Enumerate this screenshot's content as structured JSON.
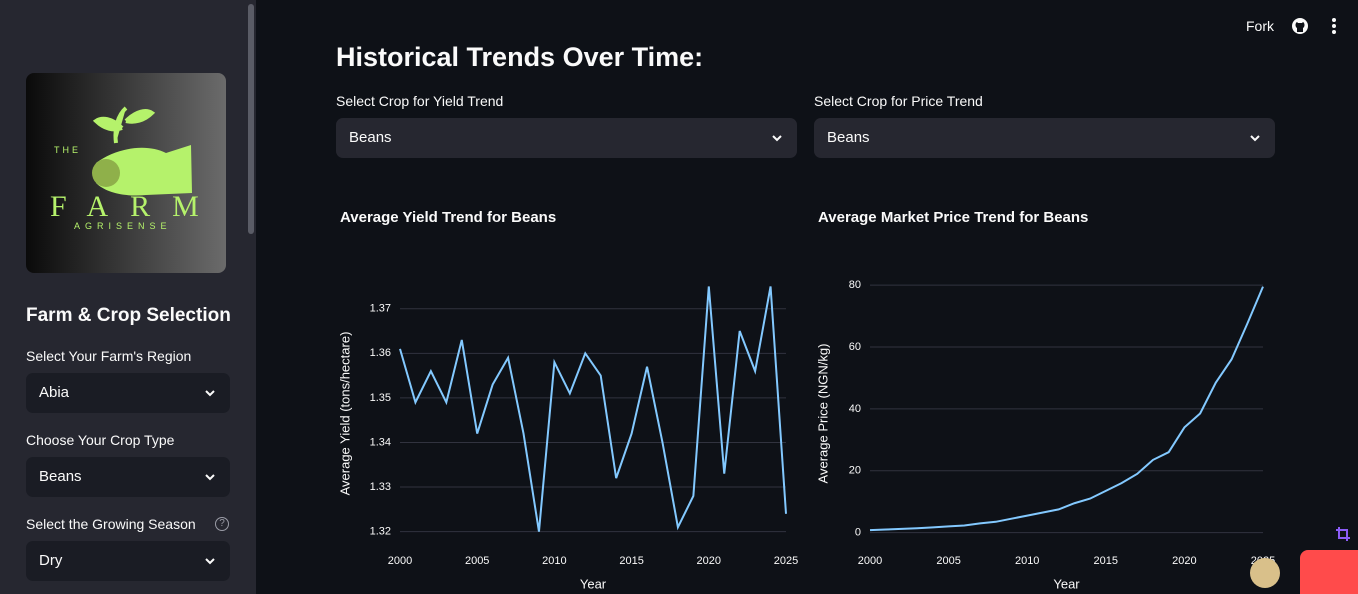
{
  "header": {
    "fork": "Fork"
  },
  "sidebar": {
    "logo": {
      "top": "THE",
      "name": "FARM",
      "tagline": "AGRISENSE"
    },
    "title": "Farm & Crop Selection",
    "region": {
      "label": "Select Your Farm's Region",
      "value": "Abia"
    },
    "crop": {
      "label": "Choose Your Crop Type",
      "value": "Beans"
    },
    "season": {
      "label": "Select the Growing Season",
      "help": "?",
      "value": "Dry"
    }
  },
  "main": {
    "title": "Historical Trends Over Time:",
    "yield_select": {
      "label": "Select Crop for Yield Trend",
      "value": "Beans"
    },
    "price_select": {
      "label": "Select Crop for Price Trend",
      "value": "Beans"
    }
  },
  "chart_data": [
    {
      "type": "line",
      "title": "Average Yield Trend for Beans",
      "x_label": "Year",
      "y_label": "Average Yield (tons/hectare)",
      "x": [
        2000,
        2001,
        2002,
        2003,
        2004,
        2005,
        2006,
        2007,
        2008,
        2009,
        2010,
        2011,
        2012,
        2013,
        2014,
        2015,
        2016,
        2017,
        2018,
        2019,
        2020,
        2021,
        2022,
        2023,
        2024,
        2025
      ],
      "values": [
        1.361,
        1.349,
        1.356,
        1.349,
        1.363,
        1.342,
        1.353,
        1.359,
        1.342,
        1.32,
        1.358,
        1.351,
        1.36,
        1.355,
        1.332,
        1.342,
        1.357,
        1.34,
        1.321,
        1.328,
        1.375,
        1.333,
        1.365,
        1.356,
        1.375,
        1.324
      ],
      "color": "#83c9ff",
      "grid": true,
      "xlim": [
        2000,
        2025
      ],
      "xticks": [
        2000,
        2005,
        2010,
        2015,
        2020,
        2025
      ],
      "ylim": [
        1.317,
        1.376
      ],
      "yticks": [
        1.32,
        1.33,
        1.34,
        1.35,
        1.36,
        1.37
      ]
    },
    {
      "type": "line",
      "title": "Average Market Price Trend for Beans",
      "x_label": "Year",
      "y_label": "Average Price (NGN/kg)",
      "x": [
        2000,
        2001,
        2002,
        2003,
        2004,
        2005,
        2006,
        2007,
        2008,
        2009,
        2010,
        2011,
        2012,
        2013,
        2014,
        2015,
        2016,
        2017,
        2018,
        2019,
        2020,
        2021,
        2022,
        2023,
        2024,
        2025
      ],
      "values": [
        0.8,
        1.0,
        1.2,
        1.4,
        1.7,
        2.0,
        2.3,
        3.0,
        3.5,
        4.5,
        5.5,
        6.5,
        7.5,
        9.5,
        11,
        13.5,
        16,
        19,
        23.5,
        26,
        34,
        38.5,
        48.5,
        56,
        67.5,
        79.5
      ],
      "color": "#83c9ff",
      "grid": true,
      "xlim": [
        2000,
        2025
      ],
      "xticks": [
        2000,
        2005,
        2010,
        2015,
        2020,
        2025
      ],
      "ylim": [
        -4,
        81
      ],
      "yticks": [
        0,
        20,
        40,
        60,
        80
      ]
    }
  ]
}
